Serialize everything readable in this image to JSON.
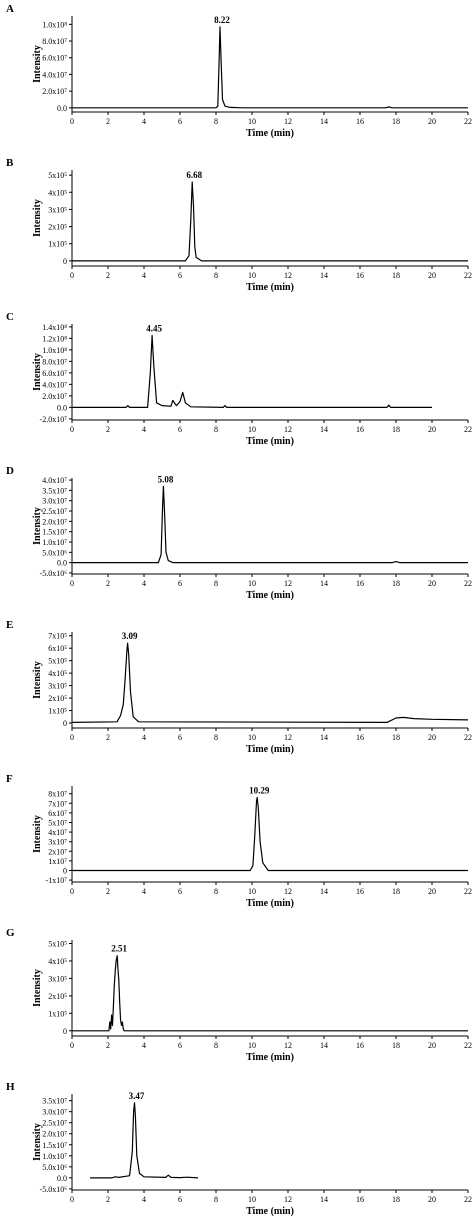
{
  "chart_data": [
    {
      "type": "line",
      "panel_label": "A",
      "xlabel": "Time (min)",
      "ylabel": "Intensity",
      "xlim": [
        0,
        22
      ],
      "ylim": [
        -0.05,
        1.1
      ],
      "xticks": [
        "0",
        "2",
        "4",
        "6",
        "8",
        "10",
        "12",
        "14",
        "16",
        "18",
        "20",
        "22"
      ],
      "yticks": [
        {
          "v": 0,
          "label": "0.0"
        },
        {
          "v": 0.2,
          "label": "2.0x10⁷"
        },
        {
          "v": 0.4,
          "label": "4.0x10⁷"
        },
        {
          "v": 0.6,
          "label": "6.0x10⁷"
        },
        {
          "v": 0.8,
          "label": "8.0x10⁷"
        },
        {
          "v": 1.0,
          "label": "1.0x10⁸"
        }
      ],
      "peak_label": "8.22",
      "baseline_end": 22,
      "series": [
        {
          "x": [
            0,
            8.0,
            8.1,
            8.18,
            8.22,
            8.28,
            8.36,
            8.5,
            8.8,
            9.5,
            17.4,
            17.6,
            17.8,
            22
          ],
          "y": [
            0,
            0,
            0.02,
            0.6,
            0.97,
            0.6,
            0.1,
            0.02,
            0.005,
            0,
            0,
            0.01,
            0,
            0
          ]
        }
      ]
    },
    {
      "type": "line",
      "panel_label": "B",
      "xlabel": "Time (min)",
      "ylabel": "Intensity",
      "xlim": [
        0,
        22
      ],
      "ylim": [
        -0.3,
        5.3
      ],
      "xticks": [
        "0",
        "2",
        "4",
        "6",
        "8",
        "10",
        "12",
        "14",
        "16",
        "18",
        "20",
        "22"
      ],
      "yticks": [
        {
          "v": 0,
          "label": "0"
        },
        {
          "v": 1,
          "label": "1x10⁵"
        },
        {
          "v": 2,
          "label": "2x10⁵"
        },
        {
          "v": 3,
          "label": "3x10⁵"
        },
        {
          "v": 4,
          "label": "4x10⁵"
        },
        {
          "v": 5,
          "label": "5x10⁵"
        }
      ],
      "peak_label": "6.68",
      "baseline_end": 22,
      "series": [
        {
          "x": [
            0,
            6.3,
            6.5,
            6.6,
            6.68,
            6.75,
            6.82,
            6.9,
            7.2,
            22
          ],
          "y": [
            0,
            0,
            0.3,
            2.4,
            4.6,
            3.2,
            0.8,
            0.2,
            0,
            0
          ]
        }
      ]
    },
    {
      "type": "line",
      "panel_label": "C",
      "xlabel": "Time (min)",
      "ylabel": "Intensity",
      "xlim": [
        0,
        22
      ],
      "ylim": [
        -2.2,
        14.5
      ],
      "xticks": [
        "0",
        "2",
        "4",
        "6",
        "8",
        "10",
        "12",
        "14",
        "16",
        "18",
        "20",
        "22"
      ],
      "yticks": [
        {
          "v": -2,
          "label": "-2.0x10⁷"
        },
        {
          "v": 0,
          "label": "0.0"
        },
        {
          "v": 2,
          "label": "2.0x10⁷"
        },
        {
          "v": 4,
          "label": "4.0x10⁷"
        },
        {
          "v": 6,
          "label": "6.0x10⁷"
        },
        {
          "v": 8,
          "label": "8.0x10⁷"
        },
        {
          "v": 10,
          "label": "1.0x10⁸"
        },
        {
          "v": 12,
          "label": "1.2x10⁸"
        },
        {
          "v": 14,
          "label": "1.4x10⁸"
        }
      ],
      "peak_label": "4.45",
      "baseline_end": 20,
      "series": [
        {
          "x": [
            0,
            3.0,
            3.1,
            3.2,
            4.2,
            4.35,
            4.45,
            4.55,
            4.7,
            5.0,
            5.5,
            5.6,
            5.8,
            6.0,
            6.15,
            6.3,
            6.6,
            8.4,
            8.5,
            8.6,
            17.5,
            17.6,
            17.7,
            20
          ],
          "y": [
            0,
            0,
            0.3,
            0,
            0,
            6.0,
            12.5,
            7.0,
            0.8,
            0.3,
            0.2,
            1.2,
            0.3,
            1.0,
            2.6,
            0.8,
            0.1,
            0,
            0.3,
            0,
            0,
            0.4,
            0,
            0
          ]
        }
      ]
    },
    {
      "type": "line",
      "panel_label": "D",
      "xlabel": "Time (min)",
      "ylabel": "Intensity",
      "xlim": [
        0,
        22
      ],
      "ylim": [
        -0.55,
        4.1
      ],
      "xticks": [
        "0",
        "2",
        "4",
        "6",
        "8",
        "10",
        "12",
        "14",
        "16",
        "18",
        "20",
        "22"
      ],
      "yticks": [
        {
          "v": -0.5,
          "label": "-5.0x10⁶"
        },
        {
          "v": 0,
          "label": "0.0"
        },
        {
          "v": 0.5,
          "label": "5.0x10⁶"
        },
        {
          "v": 1.0,
          "label": "1.0x10⁷"
        },
        {
          "v": 1.5,
          "label": "1.5x10⁷"
        },
        {
          "v": 2.0,
          "label": "2.0x10⁷"
        },
        {
          "v": 2.5,
          "label": "2.5x10⁷"
        },
        {
          "v": 3.0,
          "label": "3.0x10⁷"
        },
        {
          "v": 3.5,
          "label": "3.5x10⁷"
        },
        {
          "v": 4.0,
          "label": "4.0x10⁷"
        }
      ],
      "peak_label": "5.08",
      "baseline_end": 22,
      "series": [
        {
          "x": [
            0,
            4.8,
            4.95,
            5.03,
            5.08,
            5.14,
            5.22,
            5.35,
            5.6,
            17.8,
            18,
            18.2,
            22
          ],
          "y": [
            0,
            0,
            0.4,
            2.6,
            3.7,
            2.5,
            0.5,
            0.1,
            0,
            0,
            0.05,
            0,
            0
          ]
        }
      ]
    },
    {
      "type": "line",
      "panel_label": "E",
      "xlabel": "Time (min)",
      "ylabel": "Intensity",
      "xlim": [
        0,
        22
      ],
      "ylim": [
        -0.4,
        7.3
      ],
      "xticks": [
        "0",
        "2",
        "4",
        "6",
        "8",
        "10",
        "12",
        "14",
        "16",
        "18",
        "20",
        "22"
      ],
      "yticks": [
        {
          "v": 0,
          "label": "0"
        },
        {
          "v": 1,
          "label": "1x10⁵"
        },
        {
          "v": 2,
          "label": "2x10⁵"
        },
        {
          "v": 3,
          "label": "3x10⁵"
        },
        {
          "v": 4,
          "label": "4x10⁵"
        },
        {
          "v": 5,
          "label": "5x10⁵"
        },
        {
          "v": 6,
          "label": "6x10⁵"
        },
        {
          "v": 7,
          "label": "7x10⁵"
        }
      ],
      "peak_label": "3.09",
      "baseline_end": 22,
      "series": [
        {
          "x": [
            0,
            2.5,
            2.7,
            2.85,
            2.95,
            3.05,
            3.09,
            3.15,
            3.25,
            3.4,
            3.7,
            17.5,
            18.0,
            18.4,
            19,
            20,
            22
          ],
          "y": [
            0.05,
            0.1,
            0.6,
            1.5,
            3.5,
            5.8,
            6.4,
            5.5,
            2.5,
            0.5,
            0.1,
            0.05,
            0.4,
            0.45,
            0.35,
            0.3,
            0.25
          ]
        }
      ]
    },
    {
      "type": "line",
      "panel_label": "F",
      "xlabel": "Time (min)",
      "ylabel": "Intensity",
      "xlim": [
        0,
        22
      ],
      "ylim": [
        -1.2,
        8.8
      ],
      "xticks": [
        "0",
        "2",
        "4",
        "6",
        "8",
        "10",
        "12",
        "14",
        "16",
        "18",
        "20",
        "22"
      ],
      "yticks": [
        {
          "v": -1,
          "label": "-1x10⁷"
        },
        {
          "v": 0,
          "label": "0"
        },
        {
          "v": 1,
          "label": "1x10⁷"
        },
        {
          "v": 2,
          "label": "2x10⁷"
        },
        {
          "v": 3,
          "label": "3x10⁷"
        },
        {
          "v": 4,
          "label": "4x10⁷"
        },
        {
          "v": 5,
          "label": "5x10⁷"
        },
        {
          "v": 6,
          "label": "6x10⁷"
        },
        {
          "v": 7,
          "label": "7x10⁷"
        },
        {
          "v": 8,
          "label": "8x10⁷"
        }
      ],
      "peak_label": "10.29",
      "baseline_end": 22,
      "series": [
        {
          "x": [
            0,
            9.9,
            10.05,
            10.15,
            10.25,
            10.29,
            10.35,
            10.45,
            10.6,
            10.9,
            22
          ],
          "y": [
            0,
            0,
            0.5,
            3.5,
            7.2,
            7.6,
            6.5,
            3.0,
            0.8,
            0,
            0
          ]
        }
      ]
    },
    {
      "type": "line",
      "panel_label": "G",
      "xlabel": "Time (min)",
      "ylabel": "Intensity",
      "xlim": [
        0,
        22
      ],
      "ylim": [
        -0.3,
        5.2
      ],
      "xticks": [
        "0",
        "2",
        "4",
        "6",
        "8",
        "10",
        "12",
        "14",
        "16",
        "18",
        "20",
        "22"
      ],
      "yticks": [
        {
          "v": 0,
          "label": "0"
        },
        {
          "v": 1,
          "label": "1x10⁵"
        },
        {
          "v": 2,
          "label": "2x10⁵"
        },
        {
          "v": 3,
          "label": "3x10⁵"
        },
        {
          "v": 4,
          "label": "4x10⁵"
        },
        {
          "v": 5,
          "label": "5x10⁵"
        }
      ],
      "peak_label": "2.51",
      "baseline_end": 22,
      "series": [
        {
          "x": [
            0,
            2.05,
            2.1,
            2.15,
            2.2,
            2.25,
            2.3,
            2.35,
            2.4,
            2.45,
            2.51,
            2.55,
            2.6,
            2.65,
            2.7,
            2.75,
            2.8,
            2.85,
            2.9,
            3.0,
            22
          ],
          "y": [
            0,
            0,
            0.5,
            0.1,
            0.9,
            0.3,
            1.4,
            2.6,
            3.4,
            4.0,
            4.3,
            3.6,
            2.9,
            1.6,
            0.6,
            0.3,
            0.5,
            0.1,
            0,
            0,
            0
          ]
        }
      ]
    },
    {
      "type": "line",
      "panel_label": "H",
      "xlabel": "Time (min)",
      "ylabel": "Intensity",
      "xlim": [
        0,
        22
      ],
      "ylim": [
        -0.55,
        3.8
      ],
      "xticks": [
        "0",
        "2",
        "4",
        "6",
        "8",
        "10",
        "12",
        "14",
        "16",
        "18",
        "20",
        "22"
      ],
      "yticks": [
        {
          "v": -0.5,
          "label": "-5.0x10⁶"
        },
        {
          "v": 0,
          "label": "0.0"
        },
        {
          "v": 0.5,
          "label": "5.0x10⁶"
        },
        {
          "v": 1.0,
          "label": "1.0x10⁷"
        },
        {
          "v": 1.5,
          "label": "1.5x10⁷"
        },
        {
          "v": 2.0,
          "label": "2.0x10⁷"
        },
        {
          "v": 2.5,
          "label": "2.5x10⁷"
        },
        {
          "v": 3.0,
          "label": "3.0x10⁷"
        },
        {
          "v": 3.5,
          "label": "3.5x10⁷"
        }
      ],
      "peak_label": "3.47",
      "baseline_end": 7,
      "series": [
        {
          "x": [
            1.0,
            2.2,
            2.4,
            2.6,
            3.2,
            3.35,
            3.42,
            3.47,
            3.52,
            3.6,
            3.75,
            4.0,
            5.2,
            5.35,
            5.5,
            6.0,
            6.4,
            7.0
          ],
          "y": [
            0,
            0,
            0.05,
            0.02,
            0.1,
            1.2,
            3.0,
            3.4,
            2.8,
            1.0,
            0.2,
            0.05,
            0.02,
            0.12,
            0.02,
            0.01,
            0.03,
            0
          ]
        }
      ]
    }
  ]
}
